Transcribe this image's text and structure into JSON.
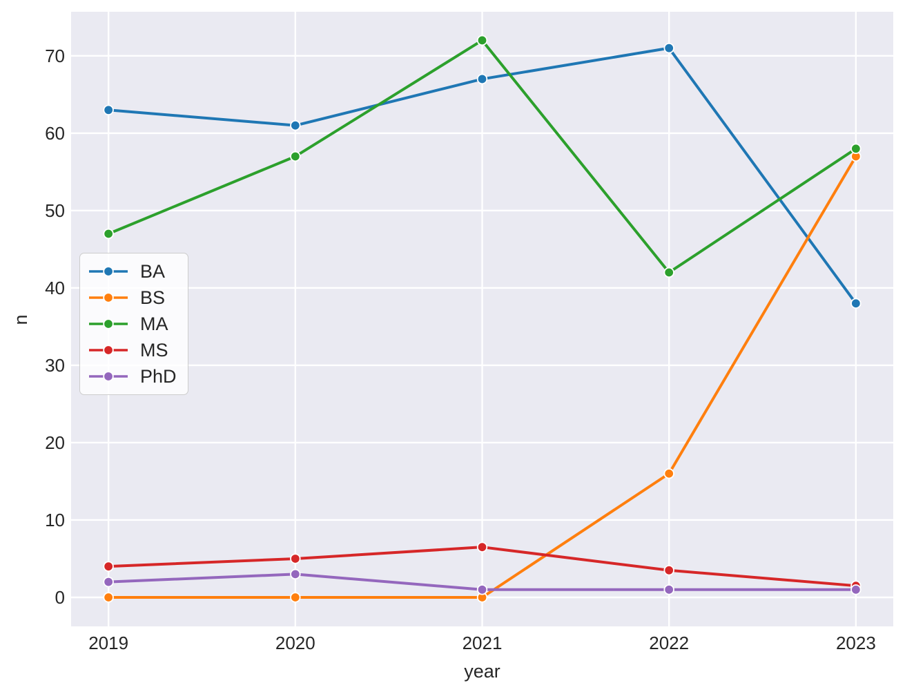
{
  "chart_data": {
    "type": "line",
    "title": "",
    "xlabel": "year",
    "ylabel": "n",
    "x": [
      2019,
      2020,
      2021,
      2022,
      2023
    ],
    "x_tick_labels": [
      "2019",
      "2020",
      "2021",
      "2022",
      "2023"
    ],
    "y_ticks": [
      0,
      10,
      20,
      30,
      40,
      50,
      60,
      70
    ],
    "y_tick_labels": [
      "0",
      "10",
      "20",
      "30",
      "40",
      "50",
      "60",
      "70"
    ],
    "xlim": [
      2018.8,
      2023.2
    ],
    "ylim": [
      -3.75,
      75.7
    ],
    "grid": true,
    "legend_position": "center-left",
    "series": [
      {
        "name": "BA",
        "color": "#1f77b4",
        "values": [
          63,
          61,
          67,
          71,
          38
        ]
      },
      {
        "name": "BS",
        "color": "#ff7f0e",
        "values": [
          0,
          0,
          0,
          16,
          57
        ]
      },
      {
        "name": "MA",
        "color": "#2ca02c",
        "values": [
          47,
          57,
          72,
          42,
          58
        ]
      },
      {
        "name": "MS",
        "color": "#d62728",
        "values": [
          4,
          5,
          6.5,
          3.5,
          1.5
        ]
      },
      {
        "name": "PhD",
        "color": "#9467bd",
        "values": [
          2,
          3,
          1,
          1,
          1
        ]
      }
    ],
    "style": {
      "figure_bg": "#ffffff",
      "axes_bg": "#eaeaf2",
      "grid_color": "#ffffff",
      "text_color": "#262626",
      "legend_border": "#cccccc"
    }
  }
}
